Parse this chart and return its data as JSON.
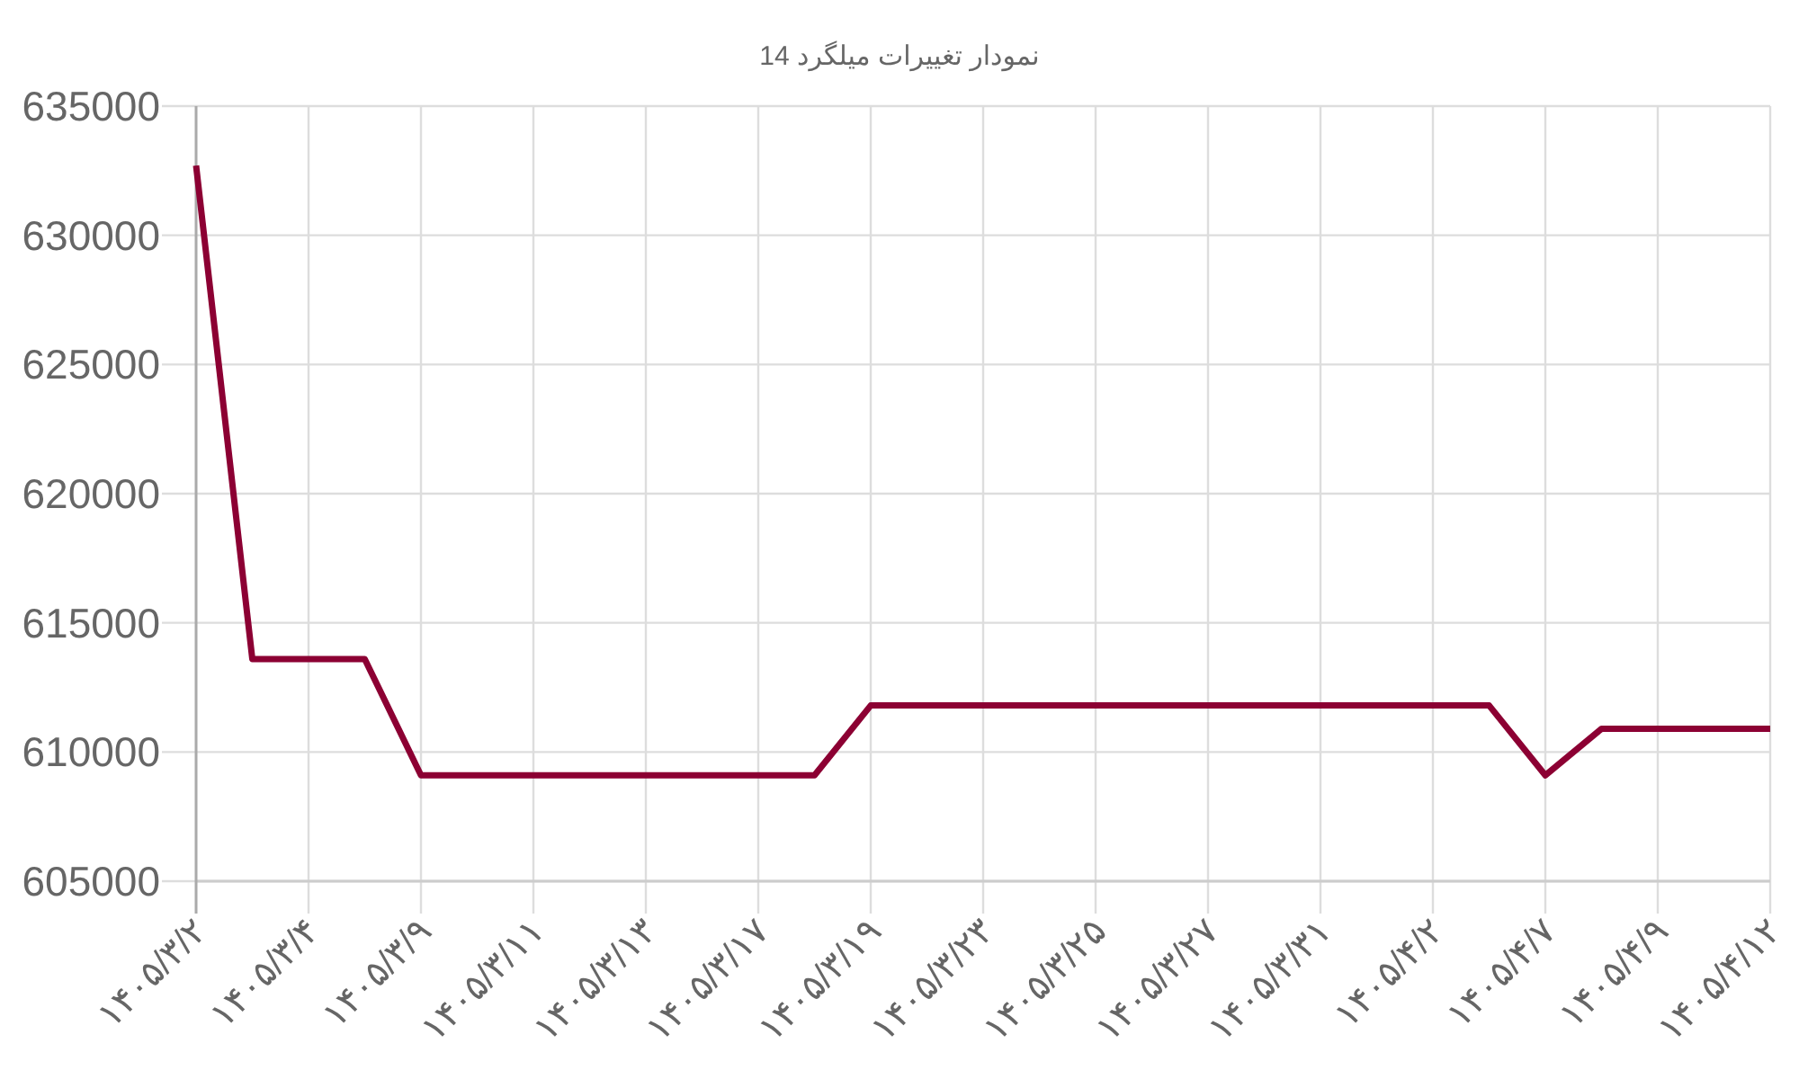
{
  "chart_data": {
    "type": "line",
    "title": "نمودار تغییرات میلگرد 14",
    "categories": [
      "۱۴۰۵/۳/۲",
      null,
      "۱۴۰۵/۳/۴",
      null,
      "۱۴۰۵/۳/۹",
      null,
      "۱۴۰۵/۳/۱۱",
      null,
      "۱۴۰۵/۳/۱۳",
      null,
      "۱۴۰۵/۳/۱۷",
      null,
      "۱۴۰۵/۳/۱۹",
      null,
      "۱۴۰۵/۳/۲۳",
      null,
      "۱۴۰۵/۳/۲۵",
      null,
      "۱۴۰۵/۳/۲۷",
      null,
      "۱۴۰۵/۳/۳۱",
      null,
      "۱۴۰۵/۴/۲",
      null,
      "۱۴۰۵/۴/۷",
      null,
      "۱۴۰۵/۴/۹",
      null,
      "۱۴۰۵/۴/۱۲"
    ],
    "series": [
      {
        "color": "#8c0033",
        "values": [
          632700,
          613600,
          613600,
          613600,
          609100,
          609100,
          609100,
          609100,
          609100,
          609100,
          609100,
          609100,
          611800,
          611800,
          611800,
          611800,
          611800,
          611800,
          611800,
          611800,
          611800,
          611800,
          611800,
          611800,
          609100,
          610900,
          610900,
          610900,
          610900
        ]
      }
    ],
    "ylim": [
      605000,
      635000
    ],
    "yticks": [
      605000,
      610000,
      615000,
      620000,
      625000,
      630000,
      635000
    ],
    "grid": true
  }
}
